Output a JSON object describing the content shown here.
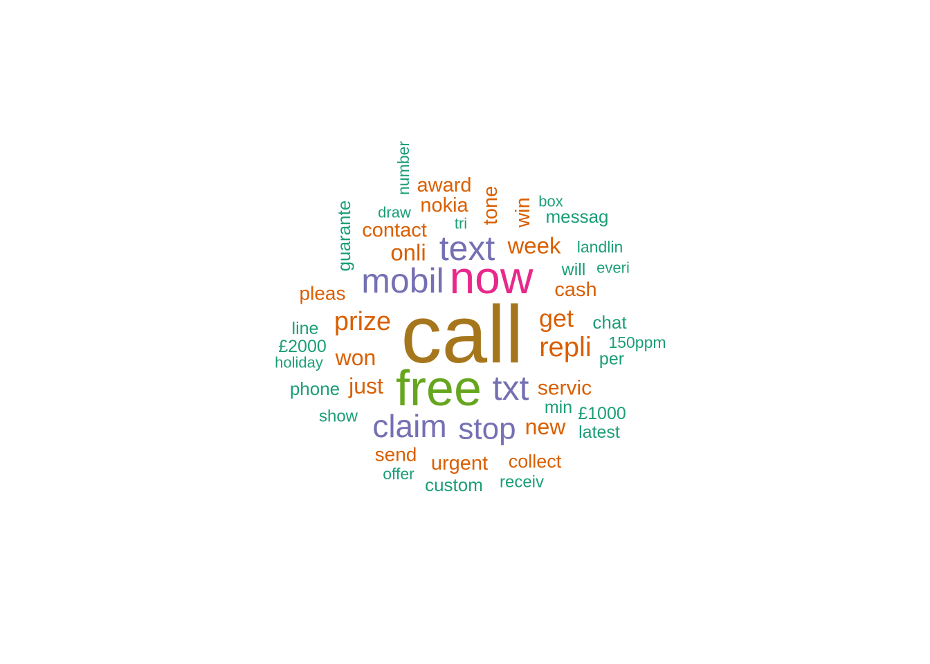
{
  "chart_data": {
    "type": "wordcloud",
    "colors": {
      "teal": "#1b9e77",
      "orange": "#d95f02",
      "purple": "#7570b3",
      "magenta": "#e7298a",
      "green": "#66a61e",
      "brown": "#a6761d"
    },
    "words": [
      {
        "text": "call",
        "color": "brown"
      },
      {
        "text": "free",
        "color": "green"
      },
      {
        "text": "now",
        "color": "magenta"
      },
      {
        "text": "mobil",
        "color": "purple"
      },
      {
        "text": "text",
        "color": "purple"
      },
      {
        "text": "txt",
        "color": "purple"
      },
      {
        "text": "claim",
        "color": "purple"
      },
      {
        "text": "stop",
        "color": "purple"
      },
      {
        "text": "repli",
        "color": "orange"
      },
      {
        "text": "prize",
        "color": "orange"
      },
      {
        "text": "get",
        "color": "orange"
      },
      {
        "text": "week",
        "color": "orange"
      },
      {
        "text": "onli",
        "color": "orange"
      },
      {
        "text": "won",
        "color": "orange"
      },
      {
        "text": "just",
        "color": "orange"
      },
      {
        "text": "new",
        "color": "orange"
      },
      {
        "text": "servic",
        "color": "orange"
      },
      {
        "text": "cash",
        "color": "orange"
      },
      {
        "text": "contact",
        "color": "orange"
      },
      {
        "text": "nokia",
        "color": "orange"
      },
      {
        "text": "award",
        "color": "orange"
      },
      {
        "text": "tone",
        "color": "orange"
      },
      {
        "text": "win",
        "color": "orange"
      },
      {
        "text": "urgent",
        "color": "orange"
      },
      {
        "text": "send",
        "color": "orange"
      },
      {
        "text": "collect",
        "color": "orange"
      },
      {
        "text": "pleas",
        "color": "orange"
      },
      {
        "text": "guarante",
        "color": "teal"
      },
      {
        "text": "number",
        "color": "teal"
      },
      {
        "text": "draw",
        "color": "teal"
      },
      {
        "text": "tri",
        "color": "teal"
      },
      {
        "text": "box",
        "color": "teal"
      },
      {
        "text": "messag",
        "color": "teal"
      },
      {
        "text": "landlin",
        "color": "teal"
      },
      {
        "text": "will",
        "color": "teal"
      },
      {
        "text": "everi",
        "color": "teal"
      },
      {
        "text": "chat",
        "color": "teal"
      },
      {
        "text": "150ppm",
        "color": "teal"
      },
      {
        "text": "per",
        "color": "teal"
      },
      {
        "text": "line",
        "color": "teal"
      },
      {
        "text": "£2000",
        "color": "teal"
      },
      {
        "text": "holiday",
        "color": "teal"
      },
      {
        "text": "phone",
        "color": "teal"
      },
      {
        "text": "show",
        "color": "teal"
      },
      {
        "text": "min",
        "color": "teal"
      },
      {
        "text": "£1000",
        "color": "teal"
      },
      {
        "text": "latest",
        "color": "teal"
      },
      {
        "text": "offer",
        "color": "teal"
      },
      {
        "text": "custom",
        "color": "teal"
      },
      {
        "text": "receiv",
        "color": "teal"
      }
    ]
  }
}
